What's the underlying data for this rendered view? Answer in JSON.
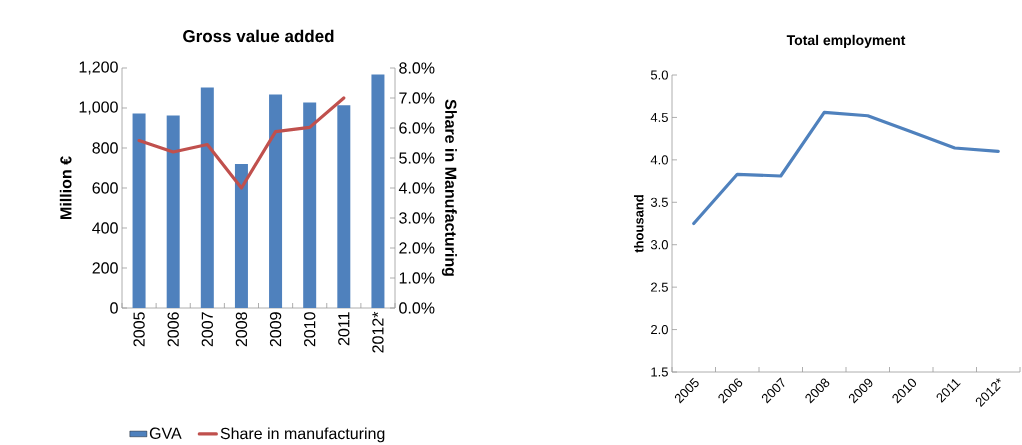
{
  "chart_data": [
    {
      "type": "bar",
      "title": "Gross value added",
      "ylabel": "Million €",
      "y2label": "Share in Manufacturing",
      "categories": [
        "2005",
        "2006",
        "2007",
        "2008",
        "2009",
        "2010",
        "2011",
        "2012*"
      ],
      "series": [
        {
          "name": "GVA",
          "type": "bar",
          "color": "#4f81bd",
          "values": [
            973,
            963,
            1102,
            720,
            1068,
            1027,
            1014,
            1168
          ]
        },
        {
          "name": "Share in manufacturing",
          "type": "line",
          "axis": "y2",
          "color": "#c0504d",
          "values": [
            5.58,
            5.2,
            5.45,
            4.0,
            5.88,
            6.02,
            7.0,
            null
          ]
        }
      ],
      "ylim": [
        0,
        1200
      ],
      "yticks": [
        0,
        200,
        400,
        600,
        800,
        {
          "value": 1000,
          "label": "1,000"
        },
        {
          "value": 1200,
          "label": "1,200"
        }
      ],
      "y2lim": [
        0,
        8
      ],
      "y2ticks": [
        {
          "value": 0,
          "label": "0.0%"
        },
        {
          "value": 1,
          "label": "1.0%"
        },
        {
          "value": 2,
          "label": "2.0%"
        },
        {
          "value": 3,
          "label": "3.0%"
        },
        {
          "value": 4,
          "label": "4.0%"
        },
        {
          "value": 5,
          "label": "5.0%"
        },
        {
          "value": 6,
          "label": "6.0%"
        },
        {
          "value": 7,
          "label": "7.0%"
        },
        {
          "value": 8,
          "label": "8.0%"
        }
      ],
      "legend": "bottom"
    },
    {
      "type": "line",
      "title": "Total employment",
      "ylabel": "thousand",
      "categories": [
        "2005",
        "2006",
        "2007",
        "2008",
        "2009",
        "2010",
        "2011",
        "2012*"
      ],
      "series": [
        {
          "color": "#4f81bd",
          "values": [
            3.25,
            3.83,
            3.81,
            4.56,
            4.52,
            4.33,
            4.14,
            4.1
          ]
        }
      ],
      "ylim": [
        1.5,
        5
      ],
      "yticks": [
        {
          "value": 1.5,
          "label": "1.5"
        },
        {
          "value": 2,
          "label": "2.0"
        },
        {
          "value": 2.5,
          "label": "2.5"
        },
        {
          "value": 3,
          "label": "3.0"
        },
        {
          "value": 3.5,
          "label": "3.5"
        },
        {
          "value": 4,
          "label": "4.0"
        },
        {
          "value": 4.5,
          "label": "4.5"
        },
        {
          "value": 5,
          "label": "5.0"
        }
      ]
    }
  ]
}
